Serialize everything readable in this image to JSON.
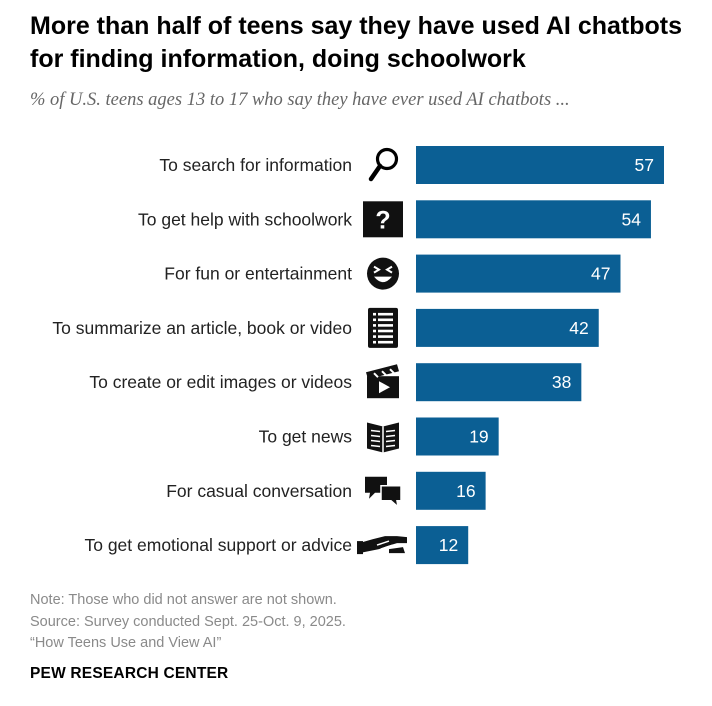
{
  "header": {
    "title": "More than half of teens say they have used AI chatbots for finding information, doing schoolwork",
    "subtitle": "% of U.S. teens ages 13 to 17 who say they have ever used AI chatbots ..."
  },
  "chart_data": {
    "type": "bar",
    "orientation": "horizontal",
    "categories": [
      "To search for information",
      "To get help with schoolwork",
      "For fun or entertainment",
      "To summarize an article, book or video",
      "To create or edit images or videos",
      "To get news",
      "For casual conversation",
      "To get emotional support or advice"
    ],
    "values": [
      57,
      54,
      47,
      42,
      38,
      19,
      16,
      12
    ],
    "icons": [
      "magnifying-glass-icon",
      "question-mark-icon",
      "laughing-face-icon",
      "list-icon",
      "clapperboard-icon",
      "newspaper-icon",
      "speech-bubbles-icon",
      "helping-hand-icon"
    ],
    "xlim": [
      0,
      57
    ],
    "bar_color": "#0b5f94",
    "grid": false
  },
  "footer": {
    "note": "Note: Those who did not answer are not shown.",
    "source": "Source: Survey conducted Sept. 25-Oct. 9, 2025.",
    "report": "“How Teens Use and View AI”",
    "org": "PEW RESEARCH CENTER"
  }
}
